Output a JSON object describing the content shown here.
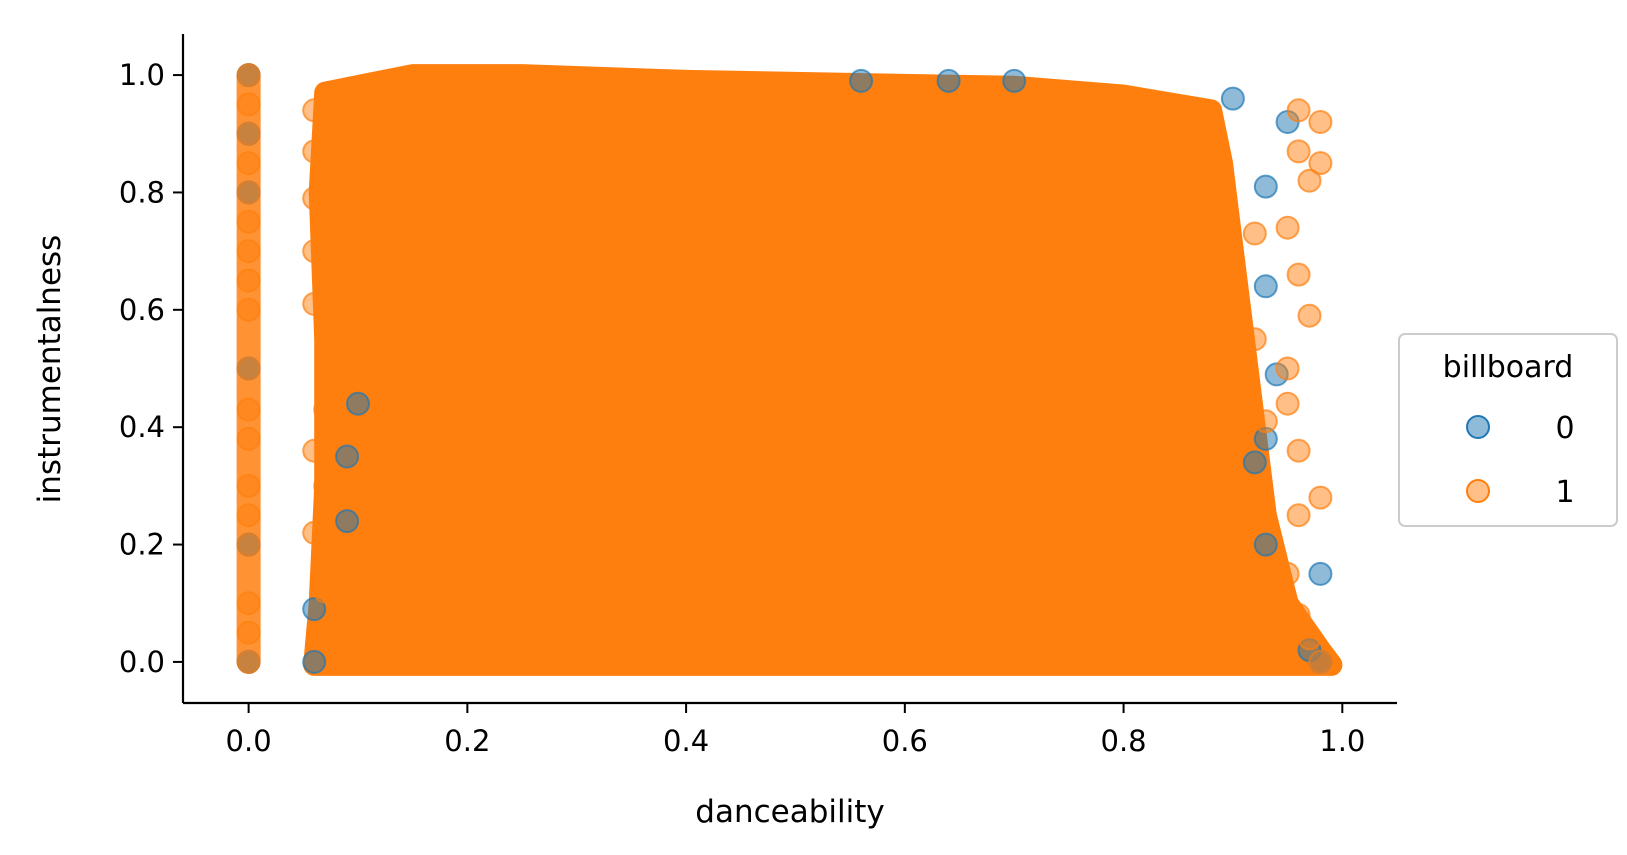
{
  "chart_data": {
    "type": "scatter",
    "xlabel": "danceability",
    "ylabel": "instrumentalness",
    "xlim": [
      -0.06,
      1.05
    ],
    "ylim": [
      -0.07,
      1.07
    ],
    "xticks": [
      "0.0",
      "0.2",
      "0.4",
      "0.6",
      "0.8",
      "1.0"
    ],
    "yticks": [
      "0.0",
      "0.2",
      "0.4",
      "0.6",
      "0.8",
      "1.0"
    ],
    "grid": false,
    "legend": {
      "title": "billboard",
      "placement": "center-right"
    },
    "series": [
      {
        "name": "0",
        "color": "#1f77b4",
        "points": [
          [
            0.0,
            1.0
          ],
          [
            0.0,
            0.9
          ],
          [
            0.0,
            0.8
          ],
          [
            0.0,
            0.5
          ],
          [
            0.0,
            0.2
          ],
          [
            0.0,
            0.0
          ],
          [
            0.06,
            0.0
          ],
          [
            0.06,
            0.09
          ],
          [
            0.09,
            0.24
          ],
          [
            0.09,
            0.35
          ],
          [
            0.1,
            0.44
          ],
          [
            0.56,
            0.99
          ],
          [
            0.64,
            0.99
          ],
          [
            0.7,
            0.99
          ],
          [
            0.9,
            0.96
          ],
          [
            0.93,
            0.81
          ],
          [
            0.95,
            0.92
          ],
          [
            0.93,
            0.64
          ],
          [
            0.94,
            0.49
          ],
          [
            0.93,
            0.38
          ],
          [
            0.92,
            0.34
          ],
          [
            0.93,
            0.2
          ],
          [
            0.98,
            0.15
          ],
          [
            0.98,
            0.0
          ],
          [
            0.97,
            0.02
          ]
        ]
      },
      {
        "name": "1",
        "color": "#ff7f0e",
        "points": [
          [
            0.0,
            1.0
          ],
          [
            0.0,
            0.95
          ],
          [
            0.0,
            0.9
          ],
          [
            0.0,
            0.85
          ],
          [
            0.0,
            0.8
          ],
          [
            0.0,
            0.75
          ],
          [
            0.0,
            0.7
          ],
          [
            0.0,
            0.65
          ],
          [
            0.0,
            0.6
          ],
          [
            0.0,
            0.5
          ],
          [
            0.0,
            0.43
          ],
          [
            0.0,
            0.38
          ],
          [
            0.0,
            0.3
          ],
          [
            0.0,
            0.25
          ],
          [
            0.0,
            0.2
          ],
          [
            0.0,
            0.1
          ],
          [
            0.0,
            0.05
          ],
          [
            0.0,
            0.0
          ],
          [
            0.06,
            0.7
          ],
          [
            0.06,
            0.79
          ],
          [
            0.06,
            0.61
          ],
          [
            0.07,
            0.43
          ],
          [
            0.06,
            0.36
          ],
          [
            0.07,
            0.3
          ],
          [
            0.06,
            0.22
          ],
          [
            0.07,
            0.12
          ],
          [
            0.06,
            0.87
          ],
          [
            0.06,
            0.94
          ],
          [
            0.96,
            0.94
          ],
          [
            0.98,
            0.92
          ],
          [
            0.98,
            0.85
          ],
          [
            0.96,
            0.87
          ],
          [
            0.97,
            0.82
          ],
          [
            0.95,
            0.74
          ],
          [
            0.96,
            0.66
          ],
          [
            0.97,
            0.59
          ],
          [
            0.95,
            0.5
          ],
          [
            0.95,
            0.44
          ],
          [
            0.96,
            0.36
          ],
          [
            0.98,
            0.28
          ],
          [
            0.96,
            0.25
          ],
          [
            0.95,
            0.15
          ],
          [
            0.96,
            0.08
          ],
          [
            0.97,
            0.04
          ],
          [
            0.98,
            0.0
          ],
          [
            0.92,
            0.55
          ],
          [
            0.92,
            0.73
          ],
          [
            0.93,
            0.41
          ],
          [
            0.92,
            0.27
          ]
        ]
      }
    ]
  }
}
